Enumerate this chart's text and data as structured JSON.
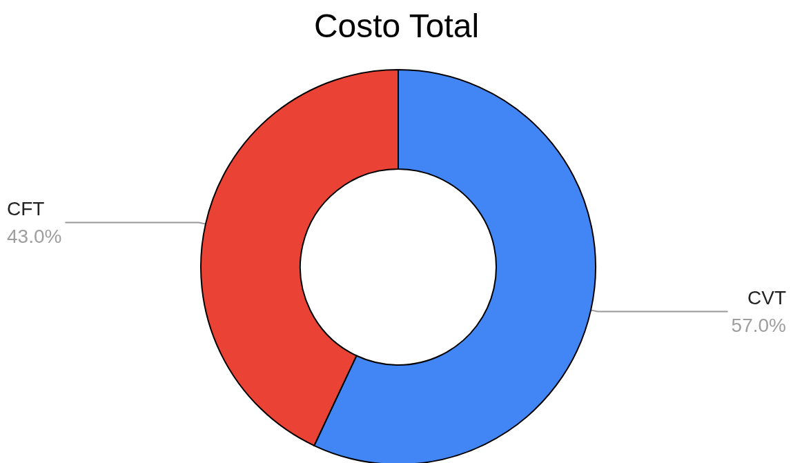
{
  "chart_data": {
    "type": "donut",
    "title": "Costo Total",
    "categories": [
      "CVT",
      "CFT"
    ],
    "values": [
      57,
      43
    ],
    "colors": [
      "#4285f4",
      "#ea4335"
    ],
    "value_labels": [
      "57.0%",
      "43.0%"
    ]
  }
}
